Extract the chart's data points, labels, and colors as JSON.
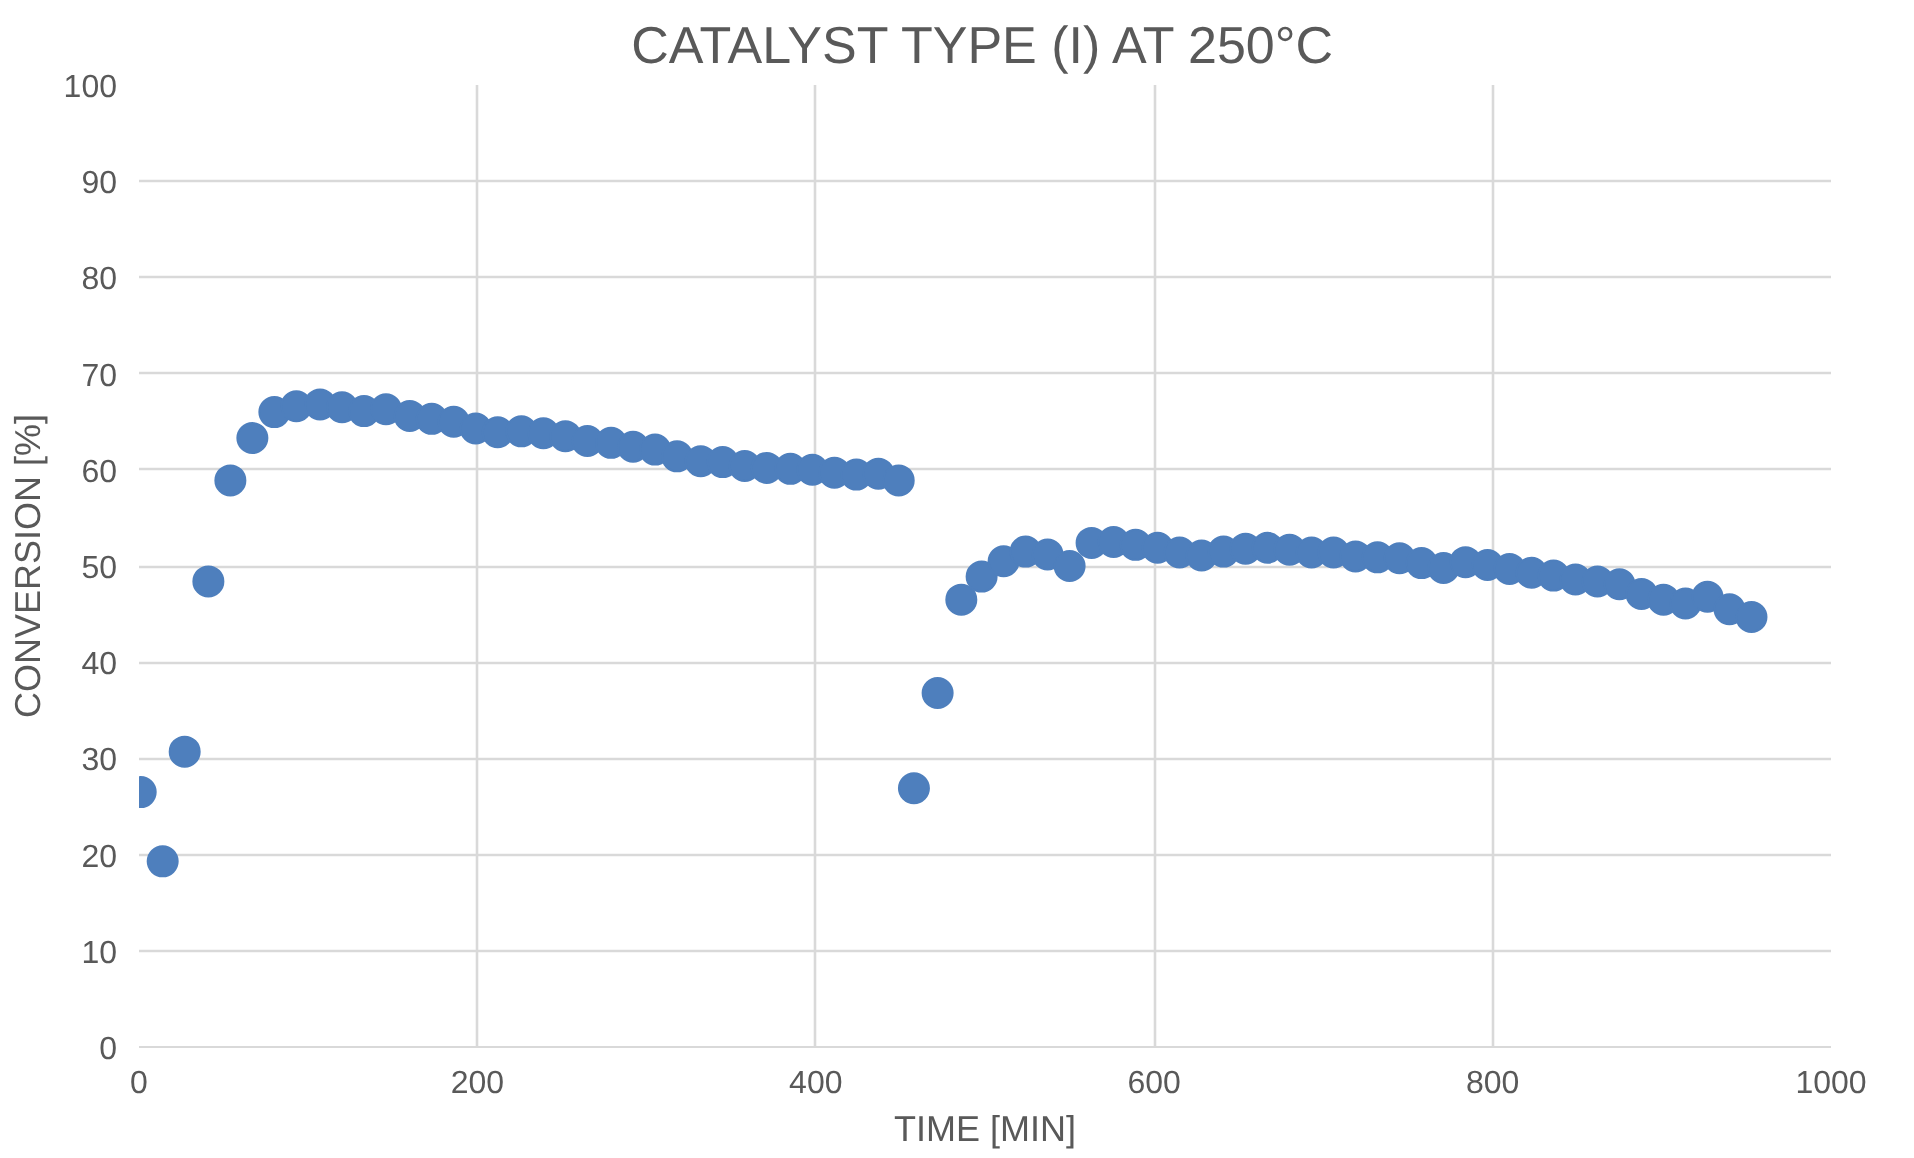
{
  "chart_data": {
    "type": "scatter",
    "title": "CATALYST TYPE (I) AT 250°C",
    "xlabel": "TIME [MIN]",
    "ylabel": "CONVERSION [%]",
    "x": [
      1,
      14,
      27,
      41,
      54,
      67,
      80,
      93,
      107,
      120,
      133,
      146,
      160,
      173,
      186,
      199,
      212,
      226,
      239,
      252,
      265,
      279,
      292,
      305,
      318,
      332,
      345,
      358,
      371,
      385,
      398,
      411,
      424,
      437,
      449,
      458,
      472,
      486,
      498,
      511,
      524,
      537,
      550,
      563,
      576,
      589,
      602,
      615,
      628,
      641,
      654,
      667,
      680,
      693,
      706,
      719,
      732,
      745,
      758,
      771,
      784,
      797,
      810,
      823,
      836,
      849,
      862,
      875,
      888,
      901,
      914,
      927,
      940,
      953
    ],
    "series": [
      {
        "color": "#4e7fbd",
        "values": [
          26.5,
          19.3,
          30.7,
          48.4,
          58.9,
          63.3,
          66.0,
          66.6,
          66.8,
          66.5,
          66.1,
          66.3,
          65.6,
          65.3,
          65.0,
          64.3,
          63.9,
          64.0,
          63.8,
          63.5,
          63.0,
          62.8,
          62.4,
          62.1,
          61.4,
          60.9,
          60.8,
          60.4,
          60.2,
          60.1,
          60.0,
          59.7,
          59.5,
          59.6,
          58.9,
          26.9,
          36.8,
          46.5,
          48.9,
          50.5,
          51.5,
          51.2,
          50.0,
          52.4,
          52.5,
          52.2,
          51.9,
          51.4,
          51.1,
          51.5,
          51.8,
          51.9,
          51.7,
          51.4,
          51.4,
          51.0,
          50.9,
          50.8,
          50.3,
          49.8,
          50.4,
          50.1,
          49.7,
          49.3,
          49.0,
          48.6,
          48.4,
          48.1,
          47.1,
          46.5,
          46.1,
          46.8,
          45.5,
          44.7
        ]
      }
    ],
    "xlim": [
      0,
      1000
    ],
    "xticks": [
      0,
      200,
      400,
      600,
      800,
      1000
    ],
    "ylim": [
      0,
      100
    ],
    "yticks": [
      0,
      10,
      20,
      30,
      40,
      50,
      60,
      70,
      80,
      90,
      100
    ],
    "grid": true,
    "marker": "circle"
  }
}
